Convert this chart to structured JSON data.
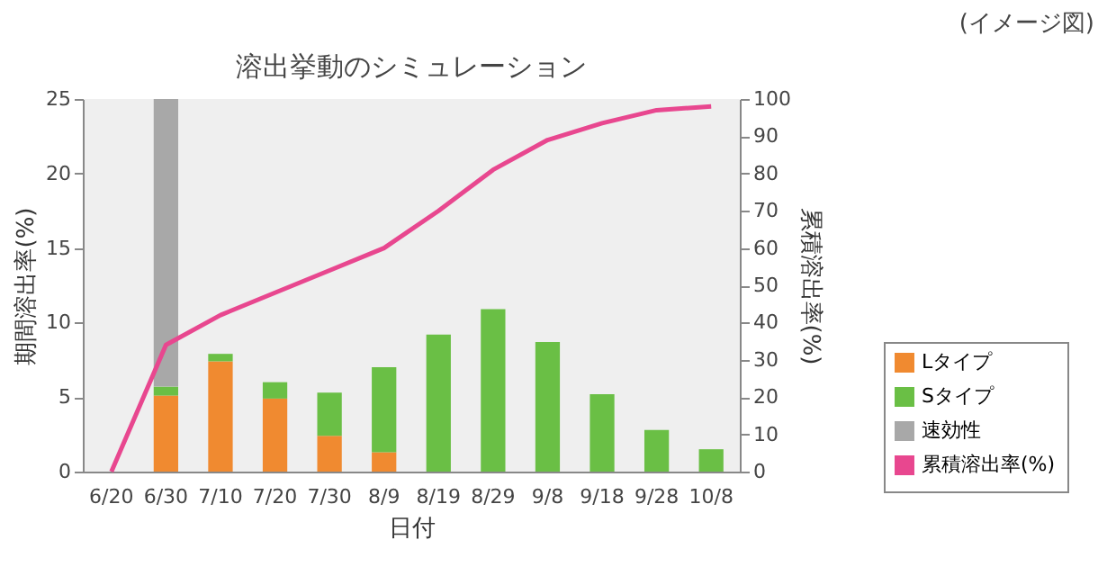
{
  "chart_data": {
    "type": "bar",
    "title": "溶出挙動のシミュレーション",
    "xlabel": "日付",
    "ylabel": "期間溶出率(%)",
    "y2label": "累積溶出率(%)",
    "annotations": [
      "(イメージ図)"
    ],
    "categories": [
      "6/20",
      "6/30",
      "7/10",
      "7/20",
      "7/30",
      "8/9",
      "8/19",
      "8/29",
      "9/8",
      "9/18",
      "9/28",
      "10/8"
    ],
    "stacked": true,
    "series": [
      {
        "name": "Lタイプ",
        "color": "#f08a30",
        "values": [
          null,
          5.1,
          7.4,
          4.9,
          2.4,
          1.3,
          null,
          null,
          null,
          null,
          null,
          null
        ]
      },
      {
        "name": "Sタイプ",
        "color": "#6abf45",
        "values": [
          null,
          0.6,
          0.5,
          1.1,
          2.9,
          5.7,
          9.2,
          10.9,
          8.7,
          5.2,
          2.8,
          1.5
        ]
      },
      {
        "name": "速効性",
        "color": "#a8a8a8",
        "values": [
          null,
          19.3,
          null,
          null,
          null,
          null,
          null,
          null,
          null,
          null,
          null,
          null
        ]
      },
      {
        "name": "累積溶出率(%)",
        "type": "line",
        "axis": "y2",
        "color": "#e8478f",
        "values": [
          0,
          34,
          42,
          48,
          54,
          60,
          70,
          81,
          89,
          93.5,
          97,
          98
        ]
      }
    ],
    "ylim": [
      0,
      25
    ],
    "yticks": [
      0,
      5,
      10,
      15,
      20,
      25
    ],
    "y2lim": [
      0,
      100
    ],
    "y2ticks": [
      0,
      10,
      20,
      30,
      40,
      50,
      60,
      70,
      80,
      90,
      100
    ],
    "grid": false,
    "legend": "bottom right"
  }
}
